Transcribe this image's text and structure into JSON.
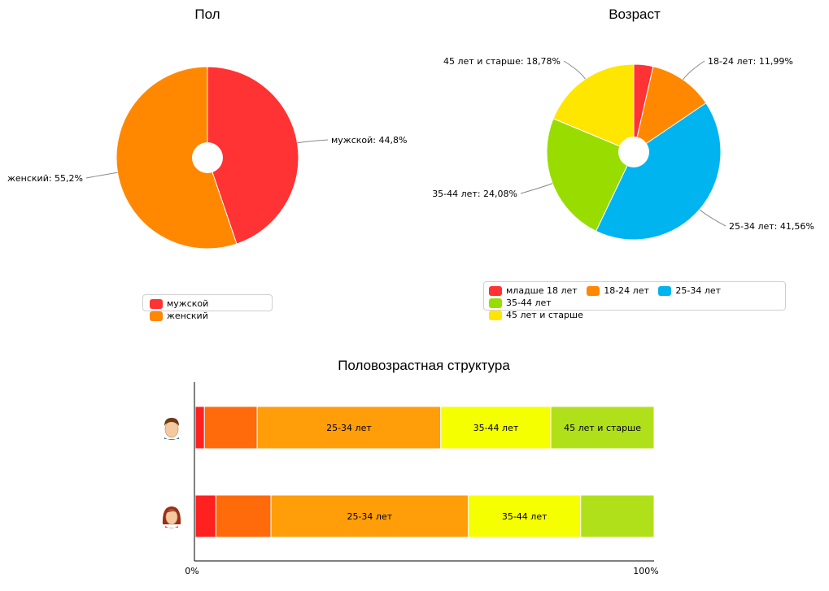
{
  "chart_data": [
    {
      "type": "pie",
      "title": "Пол",
      "slices": [
        {
          "label": "мужской",
          "value": 44.8,
          "color": "#ff3333",
          "data_label": "мужской: 44,8%"
        },
        {
          "label": "женский",
          "value": 55.2,
          "color": "#ff8800",
          "data_label": "женский: 55,2%"
        }
      ],
      "legend": {
        "placement": "bottom-center",
        "items": [
          "мужской",
          "женский"
        ]
      }
    },
    {
      "type": "pie",
      "title": "Возраст",
      "slices": [
        {
          "label": "младше 18 лет",
          "value": 3.59,
          "color": "#ff3333",
          "data_label": ""
        },
        {
          "label": "18-24 лет",
          "value": 11.99,
          "color": "#ff8800",
          "data_label": "18-24 лет: 11,99%"
        },
        {
          "label": "25-34 лет",
          "value": 41.56,
          "color": "#00b4f0",
          "data_label": "25-34 лет: 41,56%"
        },
        {
          "label": "35-44 лет",
          "value": 24.08,
          "color": "#99dd00",
          "data_label": "35-44 лет: 24,08%"
        },
        {
          "label": "45 лет и старше",
          "value": 18.78,
          "color": "#ffe600",
          "data_label": "45 лет и старше: 18,78%"
        }
      ],
      "legend": {
        "placement": "bottom-center",
        "items": [
          "младше 18 лет",
          "18-24 лет",
          "25-34 лет",
          "35-44 лет",
          "45 лет и старше"
        ]
      }
    },
    {
      "type": "bar",
      "orientation": "horizontal",
      "stacked": "percent",
      "title": "Половозрастная структура",
      "categories": [
        "мужской",
        "женский"
      ],
      "category_icons": [
        "male-avatar-icon",
        "female-avatar-icon"
      ],
      "xlim": [
        0,
        100
      ],
      "x_tick_labels": [
        "0%",
        "100%"
      ],
      "series": [
        {
          "name": "младше 18 лет",
          "color": "#ff2020",
          "values": [
            2,
            4.5
          ],
          "segment_labels": [
            "",
            ""
          ]
        },
        {
          "name": "18-24 лет",
          "color": "#ff6a0a",
          "values": [
            11.5,
            12
          ],
          "segment_labels": [
            "",
            ""
          ]
        },
        {
          "name": "25-34 лет",
          "color": "#ff9e08",
          "values": [
            40,
            43
          ],
          "segment_labels": [
            "25-34 лет",
            "25-34 лет"
          ]
        },
        {
          "name": "35-44 лет",
          "color": "#f5ff00",
          "values": [
            24,
            24.5
          ],
          "segment_labels": [
            "35-44 лет",
            "35-44 лет"
          ]
        },
        {
          "name": "45 лет и старше",
          "color": "#b0e01a",
          "values": [
            22.5,
            16
          ],
          "segment_labels": [
            "45 лет и старше",
            ""
          ]
        }
      ]
    }
  ]
}
